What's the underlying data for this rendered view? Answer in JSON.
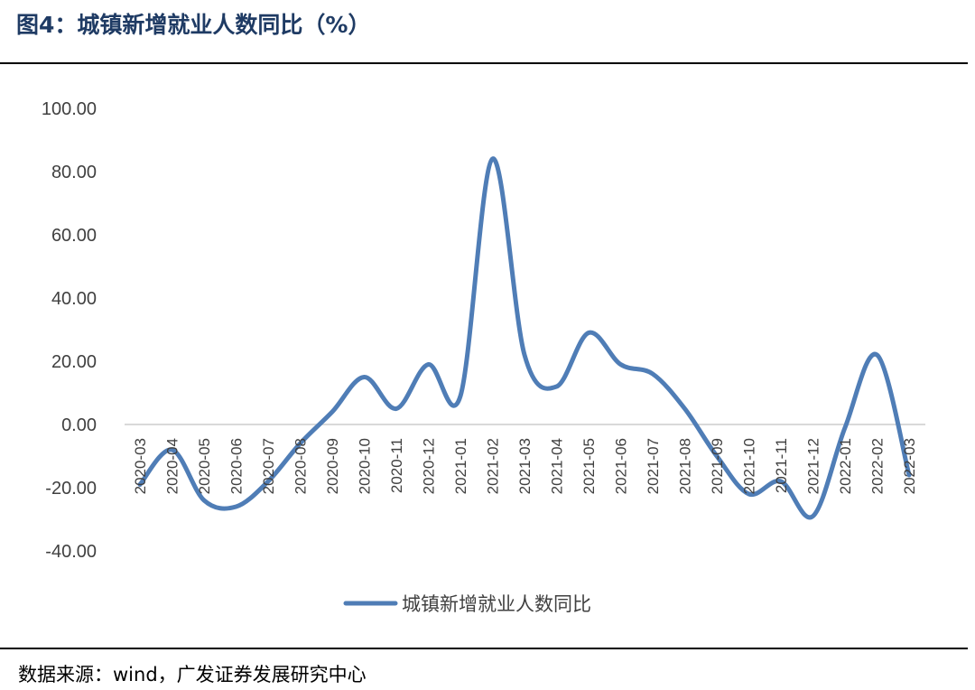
{
  "header": {
    "title": "图4：城镇新增就业人数同比（%）"
  },
  "footer": {
    "source": "数据来源：wind，广发证券发展研究中心"
  },
  "chart_data": {
    "type": "line",
    "categories": [
      "2020-03",
      "2020-04",
      "2020-05",
      "2020-06",
      "2020-07",
      "2020-08",
      "2020-09",
      "2020-10",
      "2020-11",
      "2020-12",
      "2021-01",
      "2021-02",
      "2021-03",
      "2021-04",
      "2021-05",
      "2021-06",
      "2021-07",
      "2021-08",
      "2021-09",
      "2021-10",
      "2021-11",
      "2021-12",
      "2022-01",
      "2022-02",
      "2022-03"
    ],
    "series": [
      {
        "name": "城镇新增就业人数同比",
        "values": [
          -19,
          -8,
          -24,
          -26,
          -18,
          -6,
          4,
          15,
          5,
          19,
          9,
          84,
          22,
          12,
          29,
          19,
          16,
          5,
          -10,
          -22,
          -18,
          -29,
          -1,
          22,
          -16
        ]
      }
    ],
    "ylim": [
      -40,
      100
    ],
    "yticks": [
      "100.00",
      "80.00",
      "60.00",
      "40.00",
      "20.00",
      "0.00",
      "-20.00",
      "-40.00"
    ],
    "ytick_values": [
      100,
      80,
      60,
      40,
      20,
      0,
      -20,
      -40
    ],
    "legend": "bottom-center",
    "line_color": "#4f7db6",
    "grid": false
  }
}
